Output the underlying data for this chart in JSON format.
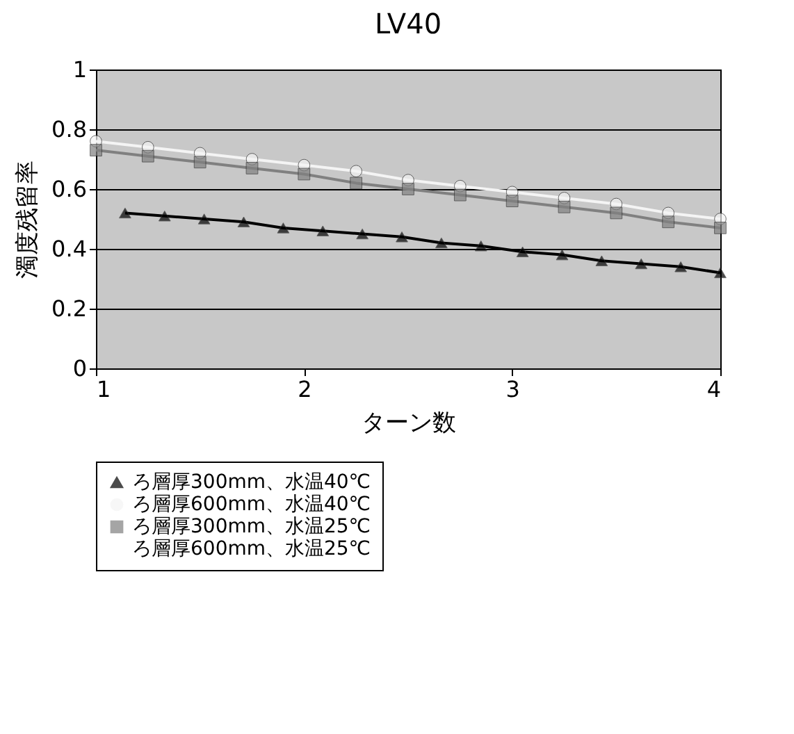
{
  "chart_data": {
    "type": "line",
    "title": "LV40",
    "xlabel": "ターン数",
    "ylabel": "濁度残留率",
    "xlim": [
      1,
      4
    ],
    "xticks": [
      1,
      2,
      3,
      4
    ],
    "ylim": [
      0,
      1
    ],
    "yticks": [
      0,
      0.2,
      0.4,
      0.6,
      0.8,
      1
    ],
    "grid": "y",
    "legend": "bottom",
    "series": [
      {
        "name": "ろ層厚300mm、水温40℃",
        "color": "#000000",
        "marker": "triangle",
        "x": [
          1.14,
          1.33,
          1.52,
          1.71,
          1.9,
          2.09,
          2.28,
          2.47,
          2.66,
          2.85,
          3.05,
          3.24,
          3.43,
          3.62,
          3.81,
          4.0
        ],
        "values": [
          0.52,
          0.51,
          0.5,
          0.49,
          0.47,
          0.46,
          0.45,
          0.44,
          0.42,
          0.41,
          0.39,
          0.38,
          0.36,
          0.35,
          0.34,
          0.32
        ]
      },
      {
        "name": "ろ層厚600mm、水温40℃",
        "color": "#f4f4f4",
        "marker": "circle",
        "x": [
          1.0,
          1.25,
          1.5,
          1.75,
          2.0,
          2.25,
          2.5,
          2.75,
          3.0,
          3.25,
          3.5,
          3.75,
          4.0
        ],
        "values": [
          0.76,
          0.74,
          0.72,
          0.7,
          0.68,
          0.66,
          0.63,
          0.61,
          0.59,
          0.57,
          0.55,
          0.52,
          0.5
        ]
      },
      {
        "name": "ろ層厚300mm、水温25℃",
        "color": "#808080",
        "marker": "square",
        "x": [
          1.0,
          1.25,
          1.5,
          1.75,
          2.0,
          2.25,
          2.5,
          2.75,
          3.0,
          3.25,
          3.5,
          3.75,
          4.0
        ],
        "values": [
          0.73,
          0.71,
          0.69,
          0.67,
          0.65,
          0.62,
          0.6,
          0.58,
          0.56,
          0.54,
          0.52,
          0.49,
          0.47
        ]
      },
      {
        "name": "ろ層厚600mm、水温25℃",
        "marker": "none"
      }
    ]
  }
}
